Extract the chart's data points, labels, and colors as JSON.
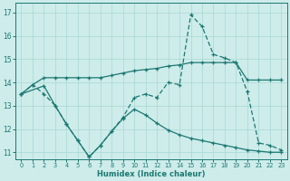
{
  "xlabel": "Humidex (Indice chaleur)",
  "xlim": [
    -0.5,
    23.5
  ],
  "ylim": [
    10.7,
    17.4
  ],
  "yticks": [
    11,
    12,
    13,
    14,
    15,
    16,
    17
  ],
  "xticks": [
    0,
    1,
    2,
    3,
    4,
    5,
    6,
    7,
    8,
    9,
    10,
    11,
    12,
    13,
    14,
    15,
    16,
    17,
    18,
    19,
    20,
    21,
    22,
    23
  ],
  "bg_color": "#cdecea",
  "line_color": "#1c7872",
  "grid_color": "#a8d8d4",
  "line1_x": [
    0,
    1,
    2,
    3,
    4,
    5,
    6,
    7,
    8,
    9,
    10,
    11,
    12,
    13,
    14,
    15,
    16,
    17,
    18,
    19,
    20,
    21,
    22,
    23
  ],
  "line1_y": [
    13.5,
    13.9,
    14.2,
    14.2,
    14.2,
    14.2,
    14.2,
    14.2,
    14.3,
    14.4,
    14.5,
    14.55,
    14.6,
    14.7,
    14.75,
    14.85,
    14.85,
    14.85,
    14.85,
    14.85,
    14.1,
    14.1,
    14.1,
    14.1
  ],
  "line2_x": [
    0,
    1,
    2,
    3,
    4,
    5,
    6,
    7,
    8,
    9,
    10,
    11,
    12,
    13,
    14,
    15,
    16,
    17,
    18,
    19,
    20,
    21,
    22,
    23
  ],
  "line2_y": [
    13.5,
    13.9,
    13.5,
    13.0,
    12.2,
    11.5,
    10.8,
    11.3,
    11.9,
    12.5,
    13.35,
    13.5,
    13.35,
    14.0,
    13.9,
    16.9,
    16.4,
    15.2,
    15.05,
    14.85,
    13.6,
    11.4,
    11.3,
    11.1
  ],
  "line3_x": [
    0,
    2,
    3,
    4,
    5,
    6,
    7,
    8,
    9,
    10,
    11,
    12,
    13,
    14,
    15,
    16,
    17,
    18,
    19,
    20,
    21,
    22,
    23
  ],
  "line3_y": [
    13.5,
    13.85,
    13.0,
    12.2,
    11.5,
    10.8,
    11.3,
    11.9,
    12.45,
    12.85,
    12.6,
    12.25,
    11.95,
    11.75,
    11.6,
    11.5,
    11.4,
    11.3,
    11.2,
    11.1,
    11.05,
    11.0,
    11.0
  ]
}
